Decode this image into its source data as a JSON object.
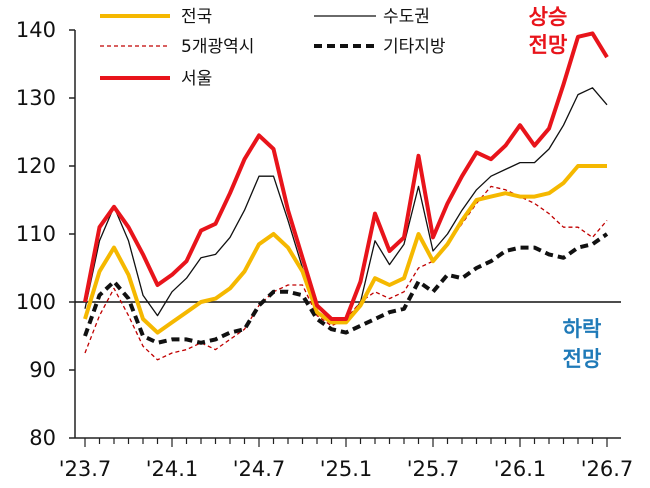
{
  "chart_data": {
    "type": "line",
    "title": "",
    "xlabel": "",
    "ylabel": "",
    "ylim": [
      80,
      140
    ],
    "y_ticks": [
      "80",
      "90",
      "100",
      "110",
      "120",
      "130",
      "140"
    ],
    "x_tick_labels": [
      "'23.7",
      "'24.1",
      "'24.7",
      "'25.1",
      "'25.7",
      "'26.1",
      "'26.7"
    ],
    "reference_line": 100,
    "grid": false,
    "legend_position": "top",
    "annotations": {
      "up": [
        "상승",
        "전망"
      ],
      "down": [
        "하락",
        "전망"
      ]
    },
    "colors": {
      "up_text": "#e8141b",
      "down_text": "#1f7ab8",
      "axis": "#222222"
    },
    "series": [
      {
        "name": "전국",
        "color": "#f5b800",
        "style": "solid-thick",
        "values": [
          97.5,
          104.5,
          108.0,
          104.0,
          97.5,
          95.5,
          97.0,
          98.5,
          100.0,
          100.5,
          102.0,
          104.5,
          108.5,
          110.0,
          108.0,
          104.5,
          98.5,
          97.0,
          97.0,
          99.5,
          103.5,
          102.5,
          103.5,
          110.0,
          106.0,
          108.5,
          112.0,
          115.0,
          115.5,
          116.0,
          115.5,
          115.5,
          116.0,
          117.5,
          120.0,
          120.0,
          120.0
        ]
      },
      {
        "name": "수도권",
        "color": "#111111",
        "style": "solid-thin",
        "values": [
          99.0,
          109.0,
          114.0,
          109.0,
          101.0,
          98.0,
          101.5,
          103.5,
          106.5,
          107.0,
          109.5,
          113.5,
          118.5,
          118.5,
          112.0,
          105.0,
          98.5,
          97.0,
          97.0,
          100.0,
          109.0,
          105.5,
          108.5,
          117.0,
          107.5,
          110.0,
          113.5,
          116.5,
          118.5,
          119.5,
          120.5,
          120.5,
          122.5,
          126.0,
          130.5,
          131.5,
          129.0
        ]
      },
      {
        "name": "5개광역시",
        "color": "#c00000",
        "style": "dashed-thin",
        "values": [
          92.5,
          98.0,
          102.0,
          98.0,
          93.5,
          91.5,
          92.5,
          93.0,
          94.0,
          93.0,
          94.5,
          96.0,
          99.5,
          101.5,
          102.5,
          102.5,
          98.0,
          96.5,
          97.5,
          100.0,
          101.5,
          100.5,
          101.5,
          105.0,
          106.0,
          108.5,
          111.5,
          114.5,
          117.0,
          116.5,
          115.5,
          114.5,
          113.0,
          111.0,
          111.0,
          109.5,
          112.0
        ]
      },
      {
        "name": "기타지방",
        "color": "#111111",
        "style": "dashed-thick",
        "values": [
          95.0,
          101.0,
          103.0,
          100.5,
          95.0,
          94.0,
          94.5,
          94.5,
          94.0,
          94.5,
          95.5,
          96.0,
          99.5,
          101.5,
          101.5,
          101.0,
          97.5,
          96.0,
          95.5,
          96.5,
          97.5,
          98.5,
          99.0,
          103.0,
          101.5,
          104.0,
          103.5,
          105.0,
          106.0,
          107.5,
          108.0,
          108.0,
          107.0,
          106.5,
          108.0,
          108.5,
          110.0
        ]
      },
      {
        "name": "서울",
        "color": "#e8141b",
        "style": "solid-thick",
        "values": [
          100.0,
          111.0,
          114.0,
          111.0,
          107.0,
          102.5,
          104.0,
          106.0,
          110.5,
          111.5,
          116.0,
          121.0,
          124.5,
          122.5,
          113.5,
          106.5,
          99.5,
          97.5,
          97.5,
          103.0,
          113.0,
          107.5,
          109.5,
          121.5,
          109.5,
          114.5,
          118.5,
          122.0,
          121.0,
          123.0,
          126.0,
          123.0,
          125.5,
          132.0,
          139.0,
          139.5,
          136.0
        ]
      }
    ]
  }
}
